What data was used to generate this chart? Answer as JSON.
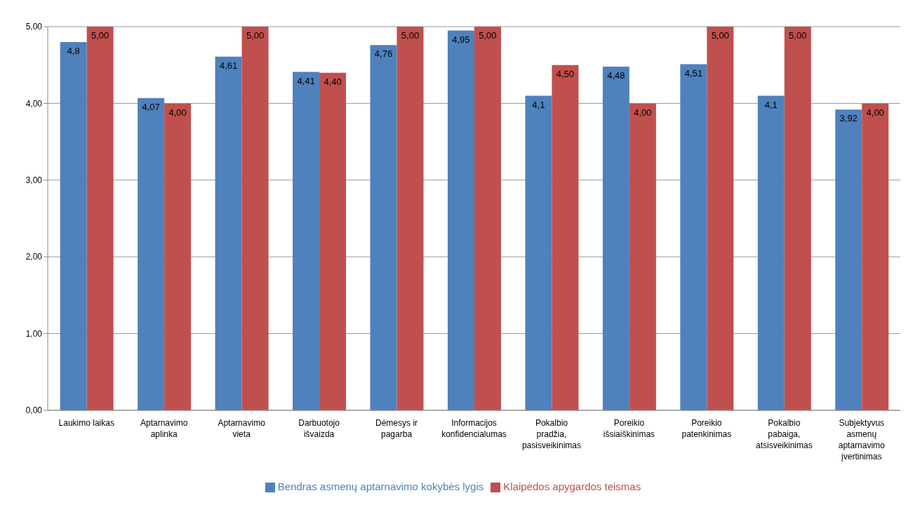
{
  "chart_data": {
    "type": "bar",
    "categories": [
      "Laukimo laikas",
      "Aptarnavimo aplinka",
      "Aptarnavimo vieta",
      "Darbuotojo išvaizda",
      "Dėmesys ir pagarba",
      "Informacijos konfidencialumas",
      "Pokalbio pradžia, pasisveikinimas",
      "Poreikio išsiaiškinimas",
      "Poreikio patenkinimas",
      "Pokalbio pabaiga, atsisveikinimas",
      "Subjektyvus asmenų aptarnavimo įvertinimas"
    ],
    "series": [
      {
        "name": "Bendras asmenų aptarnavimo kokybės lygis",
        "color": "#4f81bd",
        "values": [
          4.8,
          4.07,
          4.61,
          4.41,
          4.76,
          4.95,
          4.1,
          4.48,
          4.51,
          4.1,
          3.92
        ],
        "value_labels": [
          "4,8",
          "4,07",
          "4,61",
          "4,41",
          "4,76",
          "4,95",
          "4,1",
          "4,48",
          "4,51",
          "4,1",
          "3,92"
        ]
      },
      {
        "name": "Klaipėdos apygardos teismas",
        "color": "#c0504d",
        "values": [
          5,
          4,
          5,
          4.4,
          5,
          5,
          4.5,
          4,
          5,
          5,
          4
        ],
        "value_labels": [
          "5,00",
          "4,00",
          "5,00",
          "4,40",
          "5,00",
          "5,00",
          "4,50",
          "4,00",
          "5,00",
          "5,00",
          "4,00"
        ]
      }
    ],
    "ylim": [
      0,
      5
    ],
    "yticks": [
      {
        "value": 0,
        "label": "0,00"
      },
      {
        "value": 1,
        "label": "1,00"
      },
      {
        "value": 2,
        "label": "2,00"
      },
      {
        "value": 3,
        "label": "3,00"
      },
      {
        "value": 4,
        "label": "4,00"
      },
      {
        "value": 5,
        "label": "5,00"
      }
    ],
    "grid": "y",
    "legend": "bottom"
  }
}
